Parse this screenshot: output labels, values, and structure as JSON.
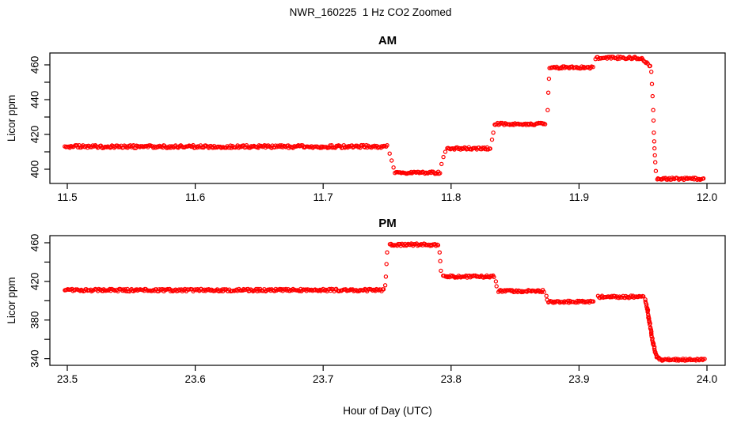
{
  "figure": {
    "title": "NWR_160225  1 Hz CO2 Zoomed",
    "x_axis_title": "Hour of Day (UTC)"
  },
  "chart_data": {
    "type": "scatter",
    "title": "NWR_160225  1 Hz CO2 Zoomed",
    "xlabel": "Hour of Day (UTC)",
    "marker": "open-circle",
    "point_color": "#ff0000",
    "axis_color": "#000000",
    "grid": false,
    "legend": "none",
    "panels": [
      {
        "title": "AM",
        "ylabel": "Licor ppm",
        "xlim": [
          11.5,
          12.0
        ],
        "ylim": [
          392,
          467
        ],
        "xticks": [
          {
            "v": 11.5,
            "label": "11.5"
          },
          {
            "v": 11.6,
            "label": "11.6"
          },
          {
            "v": 11.7,
            "label": "11.7"
          },
          {
            "v": 11.8,
            "label": "11.8"
          },
          {
            "v": 11.9,
            "label": "11.9"
          },
          {
            "v": 12.0,
            "label": "12.0"
          }
        ],
        "yticks": [
          {
            "v": 400,
            "label": "400"
          },
          {
            "v": 410,
            "label": ""
          },
          {
            "v": 420,
            "label": "420"
          },
          {
            "v": 430,
            "label": ""
          },
          {
            "v": 440,
            "label": "440"
          },
          {
            "v": 450,
            "label": ""
          },
          {
            "v": 460,
            "label": "460"
          }
        ],
        "segments": [
          {
            "t0": 11.498,
            "t1": 11.75,
            "v": 413,
            "jitter": 1.8
          },
          {
            "t0": 11.756,
            "t1": 11.792,
            "v": 398,
            "jitter": 1.5
          },
          {
            "t0": 11.797,
            "t1": 11.831,
            "v": 412,
            "jitter": 1.5
          },
          {
            "t0": 11.834,
            "t1": 11.874,
            "v": 426,
            "jitter": 1.4
          },
          {
            "t0": 11.877,
            "t1": 11.911,
            "v": 458.5,
            "jitter": 1.4
          },
          {
            "t0": 11.913,
            "t1": 11.95,
            "v": 464,
            "jitter": 1.5
          },
          {
            "t0": 11.95,
            "t1": 11.956,
            "v": 463,
            "v2": 459,
            "jitter": 1.2
          },
          {
            "t0": 11.961,
            "t1": 11.998,
            "v": 394.5,
            "jitter": 1.4
          }
        ],
        "points": [
          [
            11.752,
            409
          ],
          [
            11.7535,
            405
          ],
          [
            11.755,
            401
          ],
          [
            11.7925,
            403
          ],
          [
            11.794,
            407
          ],
          [
            11.7955,
            410
          ],
          [
            11.832,
            417
          ],
          [
            11.833,
            421
          ],
          [
            11.8755,
            434
          ],
          [
            11.876,
            444
          ],
          [
            11.8765,
            452
          ],
          [
            11.9565,
            456
          ],
          [
            11.957,
            449
          ],
          [
            11.9575,
            442
          ],
          [
            11.958,
            434
          ],
          [
            11.9582,
            428
          ],
          [
            11.9585,
            421
          ],
          [
            11.9588,
            416
          ],
          [
            11.959,
            412
          ],
          [
            11.9593,
            408
          ],
          [
            11.9596,
            404
          ],
          [
            11.96,
            399
          ]
        ],
        "curves": []
      },
      {
        "title": "PM",
        "ylabel": "Licor ppm",
        "xlim": [
          23.5,
          24.0
        ],
        "ylim": [
          333,
          467
        ],
        "xticks": [
          {
            "v": 23.5,
            "label": "23.5"
          },
          {
            "v": 23.6,
            "label": "23.6"
          },
          {
            "v": 23.7,
            "label": "23.7"
          },
          {
            "v": 23.8,
            "label": "23.8"
          },
          {
            "v": 23.9,
            "label": "23.9"
          },
          {
            "v": 24.0,
            "label": "24.0"
          }
        ],
        "yticks": [
          {
            "v": 340,
            "label": "340"
          },
          {
            "v": 360,
            "label": ""
          },
          {
            "v": 380,
            "label": "380"
          },
          {
            "v": 400,
            "label": ""
          },
          {
            "v": 420,
            "label": "420"
          },
          {
            "v": 440,
            "label": ""
          },
          {
            "v": 460,
            "label": "460"
          }
        ],
        "segments": [
          {
            "t0": 23.498,
            "t1": 23.748,
            "v": 411,
            "jitter": 1.6
          },
          {
            "t0": 23.752,
            "t1": 23.79,
            "v": 458,
            "jitter": 1.5
          },
          {
            "t0": 23.794,
            "t1": 23.834,
            "v": 425,
            "jitter": 1.4
          },
          {
            "t0": 23.837,
            "t1": 23.873,
            "v": 410,
            "jitter": 1.4
          },
          {
            "t0": 23.876,
            "t1": 23.912,
            "v": 399,
            "jitter": 1.4
          },
          {
            "t0": 23.915,
            "t1": 23.951,
            "v": 404,
            "jitter": 1.4
          },
          {
            "t0": 23.965,
            "t1": 23.998,
            "v": 339,
            "jitter": 1.3
          }
        ],
        "points": [
          [
            23.7485,
            416
          ],
          [
            23.749,
            425
          ],
          [
            23.7495,
            438
          ],
          [
            23.75,
            450
          ],
          [
            23.791,
            450
          ],
          [
            23.7915,
            441
          ],
          [
            23.792,
            431
          ],
          [
            23.835,
            420
          ],
          [
            23.8355,
            415
          ],
          [
            23.8745,
            405
          ],
          [
            23.875,
            401
          ]
        ],
        "curves": [
          [
            [
              23.952,
              401
            ],
            [
              23.9535,
              391
            ],
            [
              23.955,
              378
            ],
            [
              23.9565,
              366
            ],
            [
              23.958,
              355
            ],
            [
              23.9595,
              347
            ],
            [
              23.961,
              342
            ],
            [
              23.963,
              339.5
            ],
            [
              23.965,
              339
            ]
          ]
        ]
      }
    ]
  }
}
